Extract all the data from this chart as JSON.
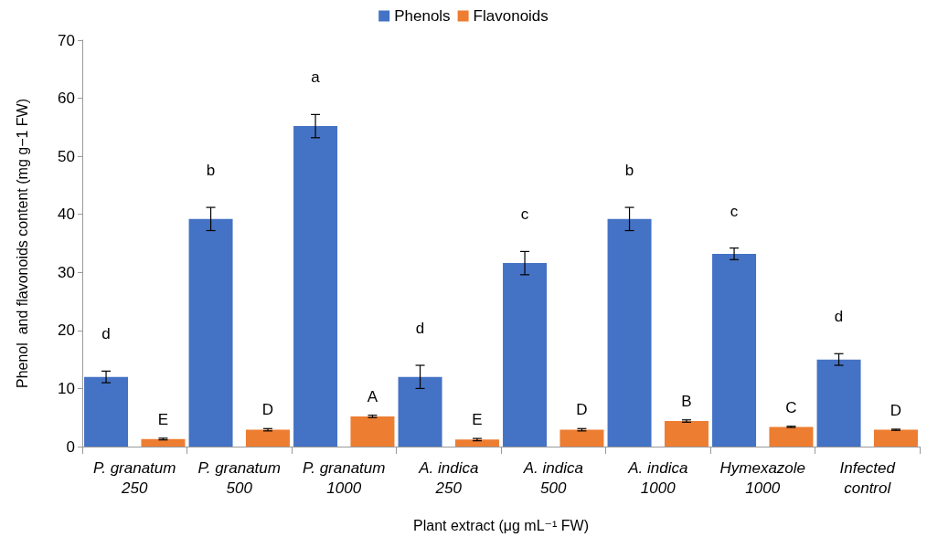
{
  "chart_data": {
    "type": "bar",
    "xlabel": "Plant extract (μg mL⁻¹ FW)",
    "ylabel": "Phenol  and flavonoids content (mg g−1 FW)",
    "categories": [
      "P. granatum 250",
      "P. granatum 500",
      "P. granatum 1000",
      "A. indica 250",
      "A. indica 500",
      "A. indica 1000",
      "Hymexazole 1000",
      "Infected control"
    ],
    "series": [
      {
        "name": "Phenols",
        "color": "#4472c4",
        "values": [
          12,
          39.2,
          55.2,
          12,
          31.6,
          39.2,
          33.2,
          15
        ],
        "errors": [
          1,
          2,
          2,
          2,
          2,
          2,
          1,
          1
        ],
        "value_labels": [
          "d",
          "b",
          "a",
          "d",
          "c",
          "b",
          "c",
          "d"
        ]
      },
      {
        "name": "Flavonoids",
        "color": "#ed7d31",
        "values": [
          1.3,
          2.9,
          5.2,
          1.2,
          2.9,
          4.4,
          3.4,
          2.9
        ],
        "errors": [
          0.15,
          0.2,
          0.2,
          0.2,
          0.2,
          0.2,
          0.1,
          0.1
        ],
        "value_labels": [
          "E",
          "D",
          "A",
          "E",
          "D",
          "B",
          "C",
          "D"
        ]
      }
    ],
    "ylim": [
      0,
      70
    ],
    "yticks": [
      0,
      10,
      20,
      30,
      40,
      50,
      60,
      70
    ],
    "legend": "top",
    "grid": false
  }
}
